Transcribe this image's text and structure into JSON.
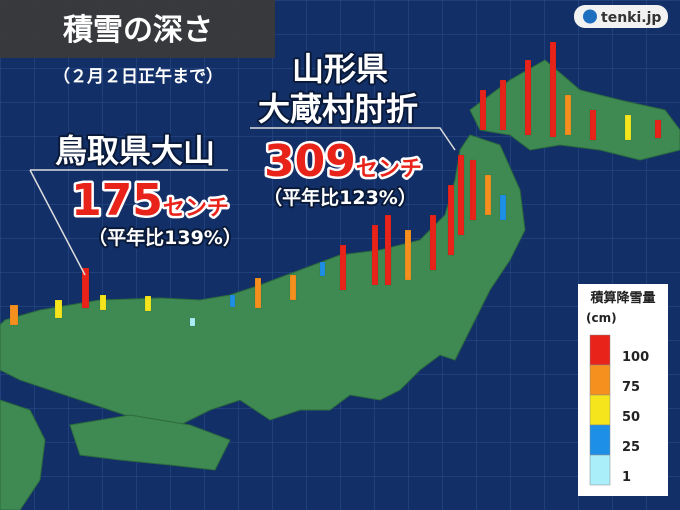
{
  "header": {
    "title": "積雪の深さ",
    "subtitle": "（２月２日正午まで）"
  },
  "logo": "tenki.jp",
  "callouts": [
    {
      "prefecture": "鳥取県大山",
      "depth": "175",
      "unit": "センチ",
      "ratio": "（平年比139%）"
    },
    {
      "prefecture": "山形県",
      "place": "大蔵村肘折",
      "depth": "309",
      "unit": "センチ",
      "ratio": "（平年比123%）"
    }
  ],
  "legend": {
    "title": "積算降雪量",
    "unit": "(cm)",
    "levels": [
      {
        "label": "100",
        "color": "#e8231a"
      },
      {
        "label": "75",
        "color": "#f5901e"
      },
      {
        "label": "50",
        "color": "#f5e51c"
      },
      {
        "label": "25",
        "color": "#1e8fe6"
      },
      {
        "label": "1",
        "color": "#a9eef8"
      }
    ]
  }
}
